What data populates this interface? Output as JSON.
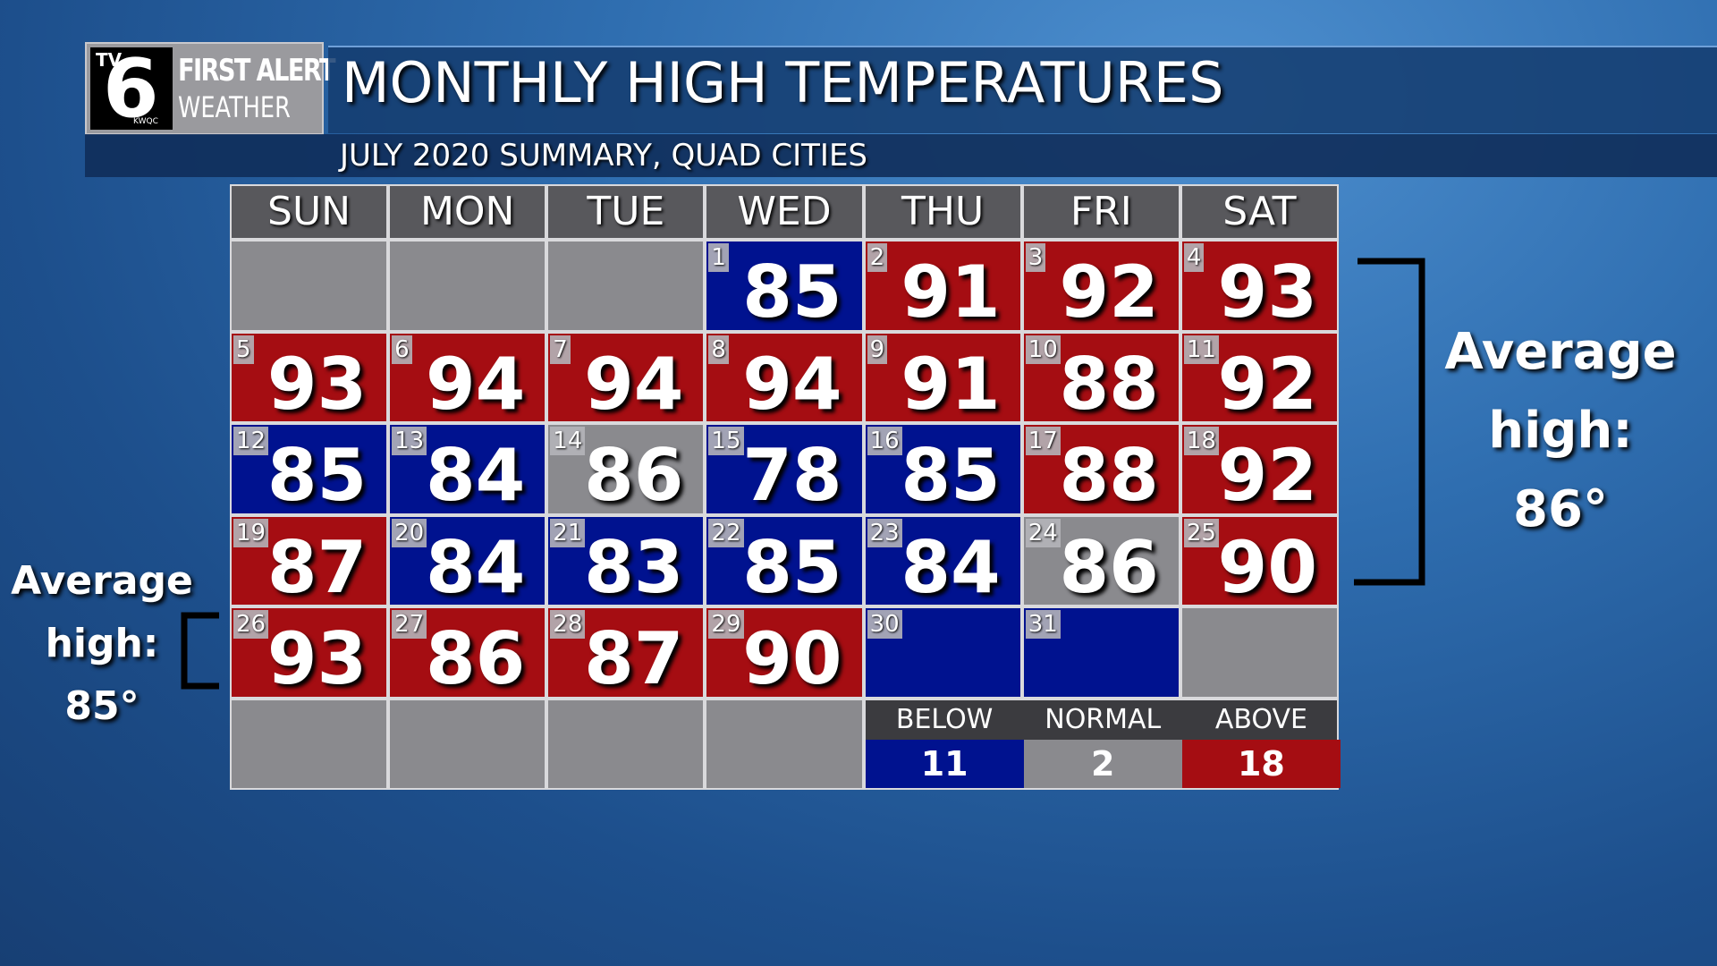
{
  "header": {
    "logo": {
      "tv": "TV",
      "channel": "6",
      "brand_top": "FIRST ALERT",
      "brand_bottom": "WEATHER",
      "station": "KWQC"
    },
    "title": "MONTHLY HIGH TEMPERATURES",
    "subtitle": "JULY 2020 SUMMARY, QUAD CITIES"
  },
  "calendar": {
    "weekdays": [
      "SUN",
      "MON",
      "TUE",
      "WED",
      "THU",
      "FRI",
      "SAT"
    ],
    "cells": [
      {
        "day": 1,
        "high": 85,
        "color": "#00128f"
      },
      {
        "day": 2,
        "high": 91,
        "color": "#a50d12"
      },
      {
        "day": 3,
        "high": 92,
        "color": "#a50d12"
      },
      {
        "day": 4,
        "high": 93,
        "color": "#a50d12"
      },
      {
        "day": 5,
        "high": 93,
        "color": "#a50d12"
      },
      {
        "day": 6,
        "high": 94,
        "color": "#a50d12"
      },
      {
        "day": 7,
        "high": 94,
        "color": "#a50d12"
      },
      {
        "day": 8,
        "high": 94,
        "color": "#a50d12"
      },
      {
        "day": 9,
        "high": 91,
        "color": "#a50d12"
      },
      {
        "day": 10,
        "high": 88,
        "color": "#a50d12"
      },
      {
        "day": 11,
        "high": 92,
        "color": "#a50d12"
      },
      {
        "day": 12,
        "high": 85,
        "color": "#00128f"
      },
      {
        "day": 13,
        "high": 84,
        "color": "#00128f"
      },
      {
        "day": 14,
        "high": 86,
        "color": "#8a8a8e"
      },
      {
        "day": 15,
        "high": 78,
        "color": "#00128f"
      },
      {
        "day": 16,
        "high": 85,
        "color": "#00128f"
      },
      {
        "day": 17,
        "high": 88,
        "color": "#a50d12"
      },
      {
        "day": 18,
        "high": 92,
        "color": "#a50d12"
      },
      {
        "day": 19,
        "high": 87,
        "color": "#a50d12"
      },
      {
        "day": 20,
        "high": 84,
        "color": "#00128f"
      },
      {
        "day": 21,
        "high": 83,
        "color": "#00128f"
      },
      {
        "day": 22,
        "high": 85,
        "color": "#00128f"
      },
      {
        "day": 23,
        "high": 84,
        "color": "#00128f"
      },
      {
        "day": 24,
        "high": 86,
        "color": "#8a8a8e"
      },
      {
        "day": 25,
        "high": 90,
        "color": "#a50d12"
      },
      {
        "day": 26,
        "high": 93,
        "color": "#a50d12"
      },
      {
        "day": 27,
        "high": 86,
        "color": "#a50d12"
      },
      {
        "day": 28,
        "high": 87,
        "color": "#a50d12"
      },
      {
        "day": 29,
        "high": 90,
        "color": "#a50d12"
      },
      {
        "day": 30,
        "color": "#00128f"
      },
      {
        "day": 31,
        "color": "#00128f"
      }
    ],
    "legend": [
      {
        "label": "BELOW",
        "count": 11,
        "color": "#00128f"
      },
      {
        "label": "NORMAL",
        "count": 2,
        "color": "#8a8a8e"
      },
      {
        "label": "ABOVE",
        "count": 18,
        "color": "#a50d12"
      }
    ]
  },
  "annotations": [
    {
      "lines": [
        "Average",
        "high:",
        "86°"
      ]
    },
    {
      "lines": [
        "Average",
        "high:",
        "85°"
      ]
    }
  ]
}
